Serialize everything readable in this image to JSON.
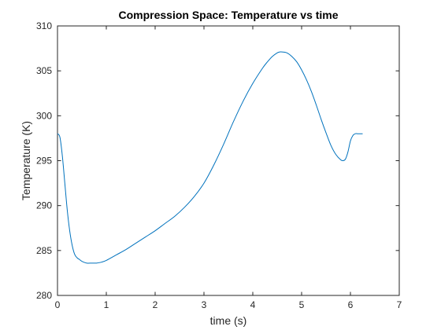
{
  "chart_data": {
    "type": "line",
    "title": "Compression Space: Temperature vs time",
    "xlabel": "time (s)",
    "ylabel": "Temperature (K)",
    "xlim": [
      0,
      7
    ],
    "ylim": [
      280,
      310
    ],
    "xticks": [
      0,
      1,
      2,
      3,
      4,
      5,
      6,
      7
    ],
    "yticks": [
      280,
      285,
      290,
      295,
      300,
      305,
      310
    ],
    "grid": false,
    "line_color": "#0072BD",
    "series": [
      {
        "x": [
          0,
          0.05,
          0.1,
          0.15,
          0.2,
          0.25,
          0.3,
          0.35,
          0.4,
          0.45,
          0.5,
          0.6,
          0.7,
          0.8,
          0.9,
          1.0,
          1.2,
          1.4,
          1.6,
          1.8,
          2.0,
          2.2,
          2.4,
          2.6,
          2.8,
          3.0,
          3.2,
          3.4,
          3.6,
          3.8,
          4.0,
          4.2,
          4.3,
          4.4,
          4.5,
          4.55,
          4.6,
          4.7,
          4.8,
          4.9,
          5.0,
          5.1,
          5.2,
          5.3,
          5.4,
          5.5,
          5.6,
          5.7,
          5.8,
          5.85,
          5.9,
          5.95,
          6.0,
          6.05,
          6.1,
          6.15,
          6.2,
          6.25
        ],
        "values": [
          298.0,
          297.6,
          295.5,
          292.5,
          289.5,
          287.2,
          285.6,
          284.6,
          284.2,
          284.0,
          283.8,
          283.6,
          283.6,
          283.6,
          283.7,
          283.9,
          284.5,
          285.1,
          285.8,
          286.5,
          287.2,
          288.0,
          288.8,
          289.8,
          291.0,
          292.5,
          294.5,
          296.8,
          299.3,
          301.6,
          303.6,
          305.3,
          306.0,
          306.6,
          307.0,
          307.1,
          307.1,
          307.0,
          306.6,
          306.0,
          305.1,
          304.0,
          302.7,
          301.2,
          299.6,
          298.1,
          296.7,
          295.7,
          295.1,
          295.0,
          295.2,
          296.0,
          297.2,
          297.8,
          298.0,
          298.0,
          298.0,
          298.0
        ]
      }
    ]
  }
}
